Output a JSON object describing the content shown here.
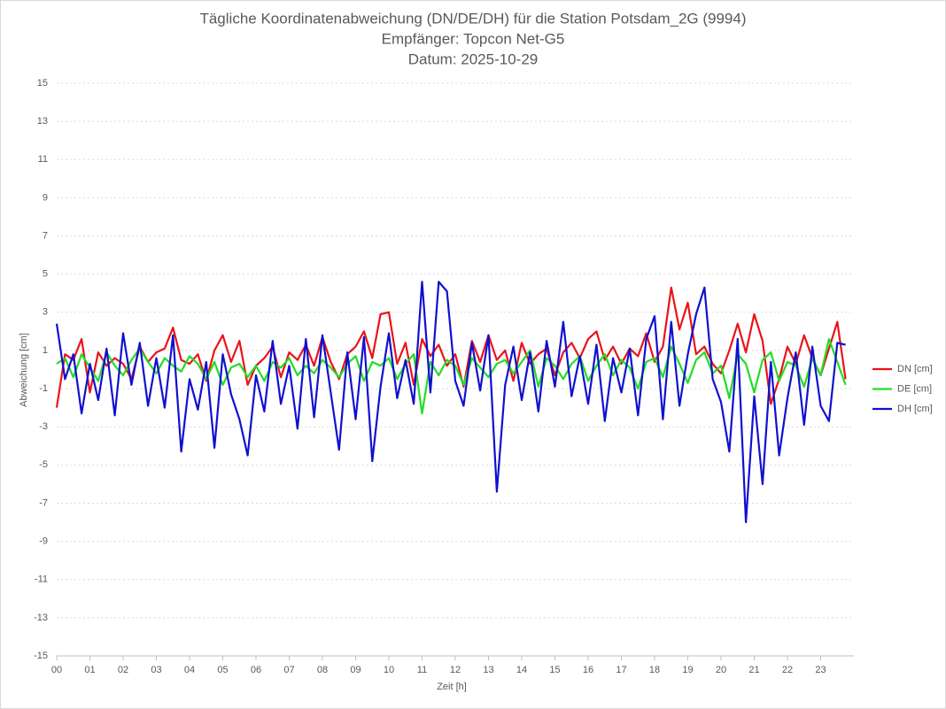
{
  "chart_data": {
    "type": "line",
    "title": "Tägliche Koordinatenabweichung (DN/DE/DH) für die Station Potsdam_2G (9994)",
    "subtitle": "Empfänger: Topcon Net-G5",
    "date_label": "Datum: 2025-10-29",
    "x_label": "Zeit [h]",
    "y_label": "Abweichung [cm]",
    "grid": true,
    "legend": "right",
    "xlim": [
      0,
      24
    ],
    "xticks": [
      {
        "value": 0,
        "label": "00"
      },
      {
        "value": 1,
        "label": "01"
      },
      {
        "value": 2,
        "label": "02"
      },
      {
        "value": 3,
        "label": "03"
      },
      {
        "value": 4,
        "label": "04"
      },
      {
        "value": 5,
        "label": "05"
      },
      {
        "value": 6,
        "label": "06"
      },
      {
        "value": 7,
        "label": "07"
      },
      {
        "value": 8,
        "label": "08"
      },
      {
        "value": 9,
        "label": "09"
      },
      {
        "value": 10,
        "label": "10"
      },
      {
        "value": 11,
        "label": "11"
      },
      {
        "value": 12,
        "label": "12"
      },
      {
        "value": 13,
        "label": "13"
      },
      {
        "value": 14,
        "label": "14"
      },
      {
        "value": 15,
        "label": "15"
      },
      {
        "value": 16,
        "label": "16"
      },
      {
        "value": 17,
        "label": "17"
      },
      {
        "value": 18,
        "label": "18"
      },
      {
        "value": 19,
        "label": "19"
      },
      {
        "value": 20,
        "label": "20"
      },
      {
        "value": 21,
        "label": "21"
      },
      {
        "value": 22,
        "label": "22"
      },
      {
        "value": 23,
        "label": "23"
      }
    ],
    "ylim": [
      -15,
      15
    ],
    "yticks": [
      -15,
      -13,
      -11,
      -9,
      -7,
      -5,
      -3,
      -1,
      1,
      3,
      5,
      7,
      9,
      11,
      13,
      15
    ],
    "x": [
      0,
      0.25,
      0.5,
      0.75,
      1,
      1.25,
      1.5,
      1.75,
      2,
      2.25,
      2.5,
      2.75,
      3,
      3.25,
      3.5,
      3.75,
      4,
      4.25,
      4.5,
      4.75,
      5,
      5.25,
      5.5,
      5.75,
      6,
      6.25,
      6.5,
      6.75,
      7,
      7.25,
      7.5,
      7.75,
      8,
      8.25,
      8.5,
      8.75,
      9,
      9.25,
      9.5,
      9.75,
      10,
      10.25,
      10.5,
      10.75,
      11,
      11.25,
      11.5,
      11.75,
      12,
      12.25,
      12.5,
      12.75,
      13,
      13.25,
      13.5,
      13.75,
      14,
      14.25,
      14.5,
      14.75,
      15,
      15.25,
      15.5,
      15.75,
      16,
      16.25,
      16.5,
      16.75,
      17,
      17.25,
      17.5,
      17.75,
      18,
      18.25,
      18.5,
      18.75,
      19,
      19.25,
      19.5,
      19.75,
      20,
      20.25,
      20.5,
      20.75,
      21,
      21.25,
      21.5,
      21.75,
      22,
      22.25,
      22.5,
      22.75,
      23,
      23.25,
      23.5,
      23.75
    ],
    "series": [
      {
        "name": "DN [cm]",
        "color": "#e8141a",
        "values": [
          -2,
          0.8,
          0.5,
          1.6,
          -1.2,
          0.9,
          0.2,
          0.6,
          0.3,
          -0.5,
          1.2,
          0.4,
          0.9,
          1.1,
          2.2,
          0.5,
          0.3,
          0.8,
          -0.6,
          1.0,
          1.8,
          0.4,
          1.5,
          -0.8,
          0.2,
          0.6,
          1.2,
          -0.4,
          0.9,
          0.5,
          1.3,
          0.2,
          1.7,
          0.4,
          -0.5,
          0.8,
          1.2,
          2.0,
          0.6,
          2.9,
          3.0,
          0.3,
          1.4,
          -0.8,
          1.6,
          0.7,
          1.3,
          0.2,
          0.8,
          -0.9,
          1.5,
          0.4,
          1.8,
          0.5,
          1.0,
          -0.6,
          1.4,
          0.3,
          0.8,
          1.1,
          -0.3,
          0.9,
          1.4,
          0.6,
          1.6,
          2.0,
          0.5,
          1.2,
          0.3,
          1.1,
          0.7,
          1.9,
          0.4,
          1.2,
          4.3,
          2.1,
          3.5,
          0.8,
          1.2,
          0.3,
          -0.2,
          1.0,
          2.4,
          0.9,
          2.9,
          1.5,
          -1.8,
          -0.5,
          1.2,
          0.3,
          1.8,
          0.6,
          -0.3,
          1.1,
          2.5,
          -0.5
        ]
      },
      {
        "name": "DE [cm]",
        "color": "#22dd22",
        "values": [
          0.3,
          0.6,
          -0.4,
          0.8,
          0.1,
          -0.6,
          0.9,
          0.2,
          -0.3,
          0.5,
          1.1,
          0.4,
          -0.2,
          0.6,
          0.2,
          -0.1,
          0.7,
          0.3,
          -0.5,
          0.4,
          -0.8,
          0.1,
          0.3,
          -0.4,
          0.2,
          -0.6,
          0.4,
          0.1,
          0.6,
          -0.3,
          0.2,
          -0.2,
          0.5,
          0.1,
          -0.4,
          0.3,
          0.7,
          -0.6,
          0.4,
          0.2,
          0.6,
          -0.5,
          0.3,
          0.8,
          -2.3,
          0.4,
          -0.3,
          0.5,
          0.2,
          -0.8,
          0.6,
          0.1,
          -0.4,
          0.3,
          0.5,
          -0.2,
          0.4,
          1.0,
          -0.9,
          0.6,
          0.2,
          -0.5,
          0.3,
          0.7,
          -0.6,
          0.2,
          0.8,
          -0.3,
          0.5,
          0.1,
          -1.0,
          0.4,
          0.6,
          -0.4,
          1.2,
          0.3,
          -0.7,
          0.5,
          0.9,
          -0.2,
          0.2,
          -1.5,
          0.8,
          0.3,
          -1.2,
          0.5,
          0.9,
          -0.6,
          0.4,
          0.2,
          -0.9,
          0.6,
          -0.3,
          1.6,
          0.4,
          -0.8
        ]
      },
      {
        "name": "DH [cm]",
        "color": "#1010d0",
        "values": [
          2.4,
          -0.5,
          0.8,
          -2.3,
          0.3,
          -1.6,
          1.1,
          -2.4,
          1.9,
          -0.8,
          1.4,
          -1.9,
          0.6,
          -2.0,
          1.8,
          -4.3,
          -0.5,
          -2.1,
          0.4,
          -4.1,
          0.8,
          -1.3,
          -2.6,
          -4.5,
          -0.3,
          -2.2,
          1.5,
          -1.8,
          0.2,
          -3.1,
          1.6,
          -2.5,
          1.8,
          -1.2,
          -4.2,
          0.9,
          -2.6,
          1.7,
          -4.8,
          -0.9,
          1.9,
          -1.5,
          0.5,
          -1.8,
          4.6,
          -1.2,
          4.6,
          4.1,
          -0.6,
          -1.9,
          1.4,
          -1.1,
          1.8,
          -6.4,
          -0.8,
          1.2,
          -1.6,
          0.9,
          -2.2,
          1.5,
          -0.9,
          2.5,
          -1.4,
          0.7,
          -1.8,
          1.3,
          -2.7,
          0.6,
          -1.2,
          1.1,
          -2.4,
          1.6,
          2.8,
          -2.6,
          2.5,
          -1.9,
          0.8,
          2.9,
          4.3,
          -0.5,
          -1.7,
          -4.3,
          1.6,
          -8.0,
          -1.4,
          -6.0,
          0.4,
          -4.5,
          -1.5,
          0.9,
          -2.9,
          1.2,
          -1.9,
          -2.7,
          1.4,
          1.3
        ]
      }
    ]
  }
}
